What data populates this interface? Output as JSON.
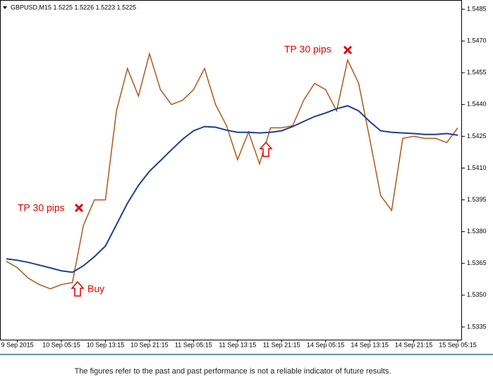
{
  "chart_data": {
    "type": "line",
    "title": "GBPUSD,M15  1.5225 1.5226 1.5223 1.5225",
    "categories": [
      null,
      "9 Sep 2015",
      null,
      null,
      null,
      "10 Sep 05:15",
      null,
      null,
      null,
      "10 Sep 13:15",
      null,
      null,
      null,
      "10 Sep 21:15",
      null,
      null,
      null,
      "11 Sep 05:15",
      null,
      null,
      null,
      "11 Sep 13:15",
      null,
      null,
      null,
      "11 Sep 21:15",
      null,
      null,
      null,
      "14 Sep 05:15",
      null,
      null,
      null,
      "14 Sep 13:15",
      null,
      null,
      null,
      "14 Sep 21:15",
      null,
      null,
      null,
      "15 Sep 05:15"
    ],
    "series": [
      {
        "color": "#b0581a",
        "values": [
          1.5366,
          1.5363,
          1.5358,
          1.5355,
          1.5353,
          1.5355,
          1.5356,
          1.5383,
          1.5395,
          1.5395,
          1.5437,
          1.5457,
          1.5444,
          1.5464,
          1.5447,
          1.544,
          1.5442,
          1.5447,
          1.5457,
          1.544,
          1.543,
          1.5414,
          1.5427,
          1.5412,
          1.5429,
          1.5429,
          1.543,
          1.5442,
          1.545,
          1.5447,
          1.5437,
          1.5461,
          1.545,
          1.5424,
          1.5397,
          1.539,
          1.5424,
          1.5425,
          1.5424,
          1.5424,
          1.5422,
          1.5429
        ]
      },
      {
        "color": "#1f3f8f",
        "values": [
          1.53672,
          1.53665,
          1.53655,
          1.53642,
          1.53629,
          1.53615,
          1.53608,
          1.53639,
          1.53682,
          1.53732,
          1.53833,
          1.53934,
          1.54018,
          1.54085,
          1.54135,
          1.54186,
          1.54236,
          1.54276,
          1.54296,
          1.54293,
          1.54279,
          1.54269,
          1.54269,
          1.54266,
          1.54269,
          1.54276,
          1.54296,
          1.5432,
          1.54343,
          1.5436,
          1.5438,
          1.54394,
          1.5437,
          1.5432,
          1.54276,
          1.54269,
          1.54266,
          1.54263,
          1.54259,
          1.54259,
          1.54263,
          1.54255
        ]
      }
    ],
    "ylim": [
      1.5329,
      1.5489
    ],
    "yticks": [
      1.5335,
      {
        "value": 1.535,
        "label": "1.5350"
      },
      1.5365,
      {
        "value": 1.538,
        "label": "1.5380"
      },
      1.5395,
      {
        "value": 1.541,
        "label": "1.5410"
      },
      1.5425,
      {
        "value": 1.544,
        "label": "1.5440"
      },
      1.5455,
      {
        "value": 1.547,
        "label": "1.5470"
      },
      1.5485
    ],
    "annotations": [
      {
        "text": "TP 30 pips"
      },
      {
        "text": "Buy"
      },
      {
        "text": "TP 30 pips"
      }
    ],
    "footnote": "The figures refer to the past and past performance is not a reliable indicator of future results."
  }
}
